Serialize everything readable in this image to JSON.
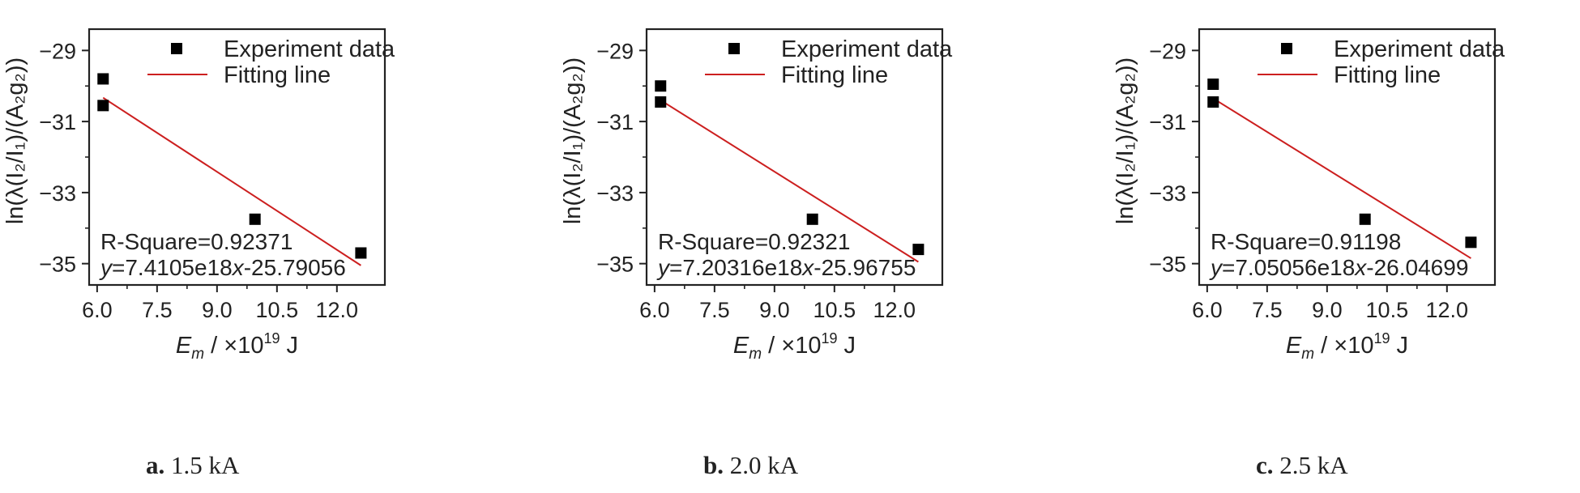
{
  "chart_data": [
    {
      "type": "scatter",
      "caption_letter": "a.",
      "caption_text": "1.5 kA",
      "xlabel_main": "E",
      "xlabel_sub": "m",
      "xlabel_rest": " / ×10",
      "xlabel_sup": "19",
      "xlabel_unit": " J",
      "ylabel": "ln(λ(I₂/I₁)/(A₂g₂))",
      "xlim": [
        5.8,
        13.2
      ],
      "ylim": [
        -35.6,
        -28.4
      ],
      "x_ticks": [
        6.0,
        7.5,
        9.0,
        10.5,
        12.0
      ],
      "x_tick_labels": [
        "6.0",
        "7.5",
        "9.0",
        "10.5",
        "12.0"
      ],
      "y_ticks": [
        -29,
        -31,
        -33,
        -35
      ],
      "y_tick_labels": [
        "−29",
        "−31",
        "−33",
        "−35"
      ],
      "legend_placement": "top-right",
      "series": [
        {
          "name": "Experiment data",
          "color": "#000000",
          "marker": "square",
          "x": [
            6.15,
            6.15,
            9.95,
            12.6
          ],
          "y": [
            -29.8,
            -30.55,
            -33.75,
            -34.7
          ]
        },
        {
          "name": "Fitting line",
          "color": "#cc1f1f",
          "line": true,
          "x": [
            6.15,
            12.6
          ],
          "y": [
            -30.33,
            -35.05
          ]
        }
      ],
      "r_square": "R-Square=0.92371",
      "eq_y": "y",
      "eq_mid": "=7.4105e18",
      "eq_x": "x",
      "eq_tail": "-25.79056"
    },
    {
      "type": "scatter",
      "caption_letter": "b.",
      "caption_text": "2.0 kA",
      "xlabel_main": "E",
      "xlabel_sub": "m",
      "xlabel_rest": " / ×10",
      "xlabel_sup": "19",
      "xlabel_unit": " J",
      "ylabel": "ln(λ(I₂/I₁)/(A₂g₂))",
      "xlim": [
        5.8,
        13.2
      ],
      "ylim": [
        -35.6,
        -28.4
      ],
      "x_ticks": [
        6.0,
        7.5,
        9.0,
        10.5,
        12.0
      ],
      "x_tick_labels": [
        "6.0",
        "7.5",
        "9.0",
        "10.5",
        "12.0"
      ],
      "y_ticks": [
        -29,
        -31,
        -33,
        -35
      ],
      "y_tick_labels": [
        "−29",
        "−31",
        "−33",
        "−35"
      ],
      "legend_placement": "top-right",
      "series": [
        {
          "name": "Experiment data",
          "color": "#000000",
          "marker": "square",
          "x": [
            6.15,
            6.15,
            9.95,
            12.6
          ],
          "y": [
            -30.0,
            -30.45,
            -33.75,
            -34.6
          ]
        },
        {
          "name": "Fitting line",
          "color": "#cc1f1f",
          "line": true,
          "x": [
            6.15,
            12.6
          ],
          "y": [
            -30.4,
            -34.95
          ]
        }
      ],
      "r_square": "R-Square=0.92321",
      "eq_y": "y",
      "eq_mid": "=7.20316e18",
      "eq_x": "x",
      "eq_tail": "-25.96755"
    },
    {
      "type": "scatter",
      "caption_letter": "c.",
      "caption_text": "2.5 kA",
      "xlabel_main": "E",
      "xlabel_sub": "m",
      "xlabel_rest": " / ×10",
      "xlabel_sup": "19",
      "xlabel_unit": " J",
      "ylabel": "ln(λ(I₂/I₁)/(A₂g₂))",
      "xlim": [
        5.8,
        13.2
      ],
      "ylim": [
        -35.6,
        -28.4
      ],
      "x_ticks": [
        6.0,
        7.5,
        9.0,
        10.5,
        12.0
      ],
      "x_tick_labels": [
        "6.0",
        "7.5",
        "9.0",
        "10.5",
        "12.0"
      ],
      "y_ticks": [
        -29,
        -31,
        -33,
        -35
      ],
      "y_tick_labels": [
        "−29",
        "−31",
        "−33",
        "−35"
      ],
      "legend_placement": "top-right",
      "series": [
        {
          "name": "Experiment data",
          "color": "#000000",
          "marker": "square",
          "x": [
            6.15,
            6.15,
            9.95,
            12.6
          ],
          "y": [
            -29.95,
            -30.45,
            -33.75,
            -34.4
          ]
        },
        {
          "name": "Fitting line",
          "color": "#cc1f1f",
          "line": true,
          "x": [
            6.15,
            12.6
          ],
          "y": [
            -30.35,
            -34.85
          ]
        }
      ],
      "r_square": "R-Square=0.91198",
      "eq_y": "y",
      "eq_mid": "=7.05056e18",
      "eq_x": "x",
      "eq_tail": "-26.04699"
    }
  ]
}
